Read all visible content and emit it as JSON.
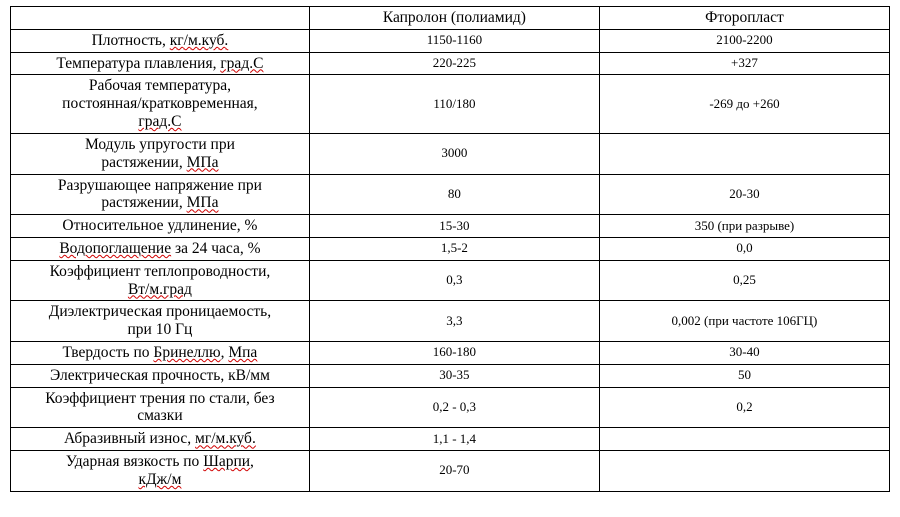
{
  "table": {
    "background_color": "#ffffff",
    "border_color": "#000000",
    "text_color": "#000000",
    "squiggle_color": "#d00000",
    "header_fontsize": 15.5,
    "prop_fontsize": 15.5,
    "value_fontsize": 13,
    "col_widths_pct": [
      34,
      33,
      33
    ],
    "headers": {
      "property": "",
      "material1": "Капролон (полиамид)",
      "material2": "Фторопласт"
    },
    "rows": [
      {
        "property_parts": [
          {
            "t": "Плотность, ",
            "u": false
          },
          {
            "t": "кг/м.куб.",
            "u": true
          }
        ],
        "material1": "1150-1160",
        "material2": "2100-2200"
      },
      {
        "property_parts": [
          {
            "t": "Температура плавления, ",
            "u": false
          },
          {
            "t": "град.С",
            "u": true
          }
        ],
        "material1": "220-225",
        "material2": "+327"
      },
      {
        "property_parts": [
          {
            "t": "Рабочая температура,\nпостоянная/кратковременная,\n",
            "u": false
          },
          {
            "t": "град.С",
            "u": true
          }
        ],
        "material1": "110/180",
        "material2": "-269 до +260"
      },
      {
        "property_parts": [
          {
            "t": "Модуль упругости при\nрастяжении, ",
            "u": false
          },
          {
            "t": "МПа",
            "u": true
          }
        ],
        "material1": "3000",
        "material2": ""
      },
      {
        "property_parts": [
          {
            "t": "Разрушающее напряжение при\nрастяжении, ",
            "u": false
          },
          {
            "t": "МПа",
            "u": true
          }
        ],
        "material1": "80",
        "material2": "20-30"
      },
      {
        "property_parts": [
          {
            "t": "Относительное удлинение, %",
            "u": false
          }
        ],
        "material1": "15-30",
        "material2": "350 (при разрыве)"
      },
      {
        "property_parts": [
          {
            "t": "Водопоглащение",
            "u": true
          },
          {
            "t": " за 24 часа, %",
            "u": false
          }
        ],
        "material1": "1,5-2",
        "material2": "0,0"
      },
      {
        "property_parts": [
          {
            "t": "Коэффициент теплопроводности,\n",
            "u": false
          },
          {
            "t": "Вт/м.град",
            "u": true
          }
        ],
        "material1": "0,3",
        "material2": "0,25"
      },
      {
        "property_parts": [
          {
            "t": "Диэлектрическая проницаемость,\nпри 10 Гц",
            "u": false
          }
        ],
        "material1": "3,3",
        "material2": "0,002 (при частоте 106ГЦ)"
      },
      {
        "property_parts": [
          {
            "t": "Твердость по ",
            "u": false
          },
          {
            "t": "Бринеллю",
            "u": true
          },
          {
            "t": ", ",
            "u": false
          },
          {
            "t": "Мпа",
            "u": true
          }
        ],
        "material1": "160-180",
        "material2": "30-40"
      },
      {
        "property_parts": [
          {
            "t": "Электрическая прочность, кВ/мм",
            "u": false
          }
        ],
        "material1": "30-35",
        "material2": "50"
      },
      {
        "property_parts": [
          {
            "t": "Коэффициент трения по стали, без\nсмазки",
            "u": false
          }
        ],
        "material1": "0,2 - 0,3",
        "material2": "0,2"
      },
      {
        "property_parts": [
          {
            "t": "Абразивный износ, ",
            "u": false
          },
          {
            "t": "мг/м.куб.",
            "u": true
          }
        ],
        "material1": "1,1 - 1,4",
        "material2": ""
      },
      {
        "property_parts": [
          {
            "t": "Ударная вязкость по ",
            "u": false
          },
          {
            "t": "Шарпи",
            "u": true
          },
          {
            "t": ",\n",
            "u": false
          },
          {
            "t": "кДж/м",
            "u": true
          }
        ],
        "material1": "20-70",
        "material2": ""
      }
    ]
  }
}
